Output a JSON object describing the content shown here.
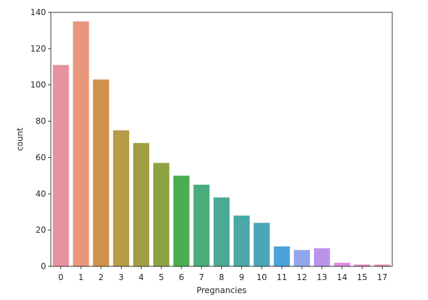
{
  "chart_data": {
    "type": "bar",
    "title": "",
    "xlabel": "Pregnancies",
    "ylabel": "count",
    "categories": [
      "0",
      "1",
      "2",
      "3",
      "4",
      "5",
      "6",
      "7",
      "8",
      "9",
      "10",
      "11",
      "12",
      "13",
      "14",
      "15",
      "17"
    ],
    "values": [
      111,
      135,
      103,
      75,
      68,
      57,
      50,
      45,
      38,
      28,
      24,
      11,
      9,
      10,
      2,
      1,
      1
    ],
    "colors": [
      "#e8929e",
      "#e8977a",
      "#d0914a",
      "#b89b47",
      "#a39e44",
      "#8fa242",
      "#4aae4e",
      "#49ad7c",
      "#4aaa95",
      "#4aa8a7",
      "#4aa6b8",
      "#4aa4d9",
      "#92a6ea",
      "#bb94ea",
      "#e187e4",
      "#e886c6",
      "#e88dae"
    ],
    "ylim": [
      0,
      140
    ],
    "yticks": [
      0,
      20,
      40,
      60,
      80,
      100,
      120,
      140
    ],
    "grid": false
  }
}
